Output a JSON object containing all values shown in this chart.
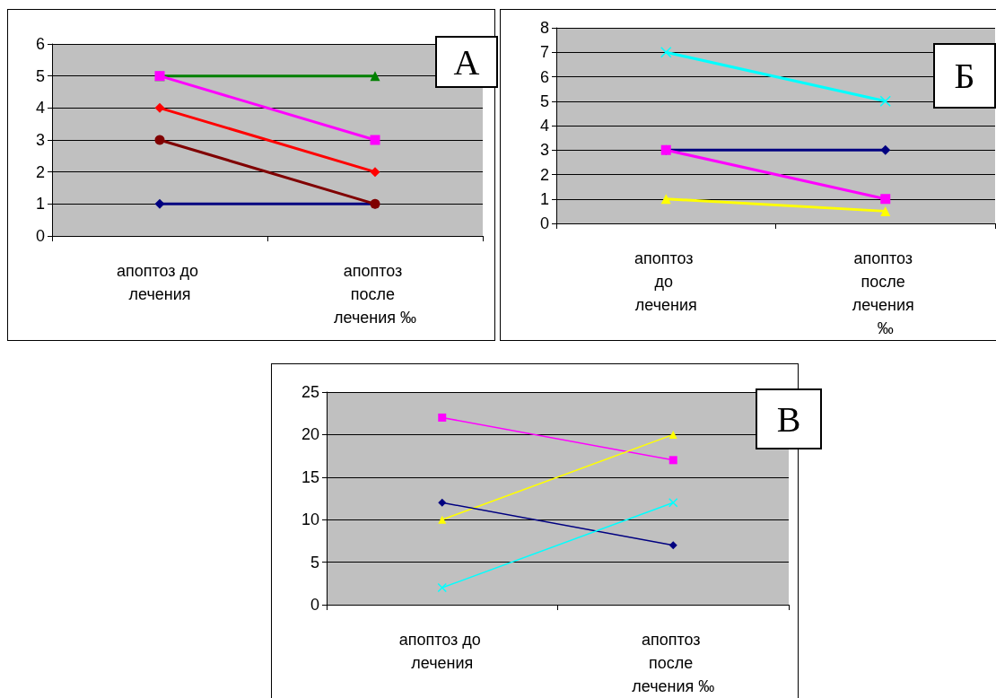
{
  "chart_data": [
    {
      "type": "line",
      "annotations": [
        "А"
      ],
      "categories": [
        "апоптоз до лечения",
        "апоптоз после лечения ‰"
      ],
      "ylim": [
        0,
        6
      ],
      "yticks": [
        0,
        1,
        2,
        3,
        4,
        5,
        6
      ],
      "grid": "y",
      "series": [
        {
          "color": "#000080",
          "marker": "diamond",
          "values": [
            1,
            1
          ]
        },
        {
          "color": "#008000",
          "marker": "triangle",
          "values": [
            5,
            5
          ]
        },
        {
          "color": "#ff00ff",
          "marker": "square",
          "values": [
            5,
            3
          ]
        },
        {
          "color": "#ff0000",
          "marker": "diamond",
          "values": [
            4,
            2
          ]
        },
        {
          "color": "#800000",
          "marker": "circle",
          "values": [
            3,
            1
          ]
        }
      ]
    },
    {
      "type": "line",
      "annotations": [
        "Б"
      ],
      "categories": [
        "апоптоз до лечения",
        "апоптоз после лечения ‰"
      ],
      "ylim": [
        0,
        8
      ],
      "yticks": [
        0,
        1,
        2,
        3,
        4,
        5,
        6,
        7,
        8
      ],
      "grid": "y",
      "series": [
        {
          "color": "#00ffff",
          "marker": "cross",
          "values": [
            7,
            5
          ]
        },
        {
          "color": "#000080",
          "marker": "diamond",
          "values": [
            3,
            3
          ]
        },
        {
          "color": "#ff00ff",
          "marker": "square",
          "values": [
            3,
            1
          ]
        },
        {
          "color": "#ffff00",
          "marker": "triangle",
          "values": [
            1,
            0.5
          ]
        }
      ]
    },
    {
      "type": "line",
      "annotations": [
        "В"
      ],
      "categories": [
        "апоптоз до лечения",
        "апоптоз после лечения ‰"
      ],
      "ylim": [
        0,
        25
      ],
      "yticks": [
        0,
        5,
        10,
        15,
        20,
        25
      ],
      "grid": "y",
      "series": [
        {
          "color": "#ff00ff",
          "marker": "square",
          "values": [
            22,
            17
          ]
        },
        {
          "color": "#ffff00",
          "marker": "triangle",
          "values": [
            10,
            20
          ]
        },
        {
          "color": "#000080",
          "marker": "diamond",
          "values": [
            12,
            7
          ]
        },
        {
          "color": "#00ffff",
          "marker": "cross",
          "values": [
            2,
            12
          ]
        }
      ]
    }
  ]
}
